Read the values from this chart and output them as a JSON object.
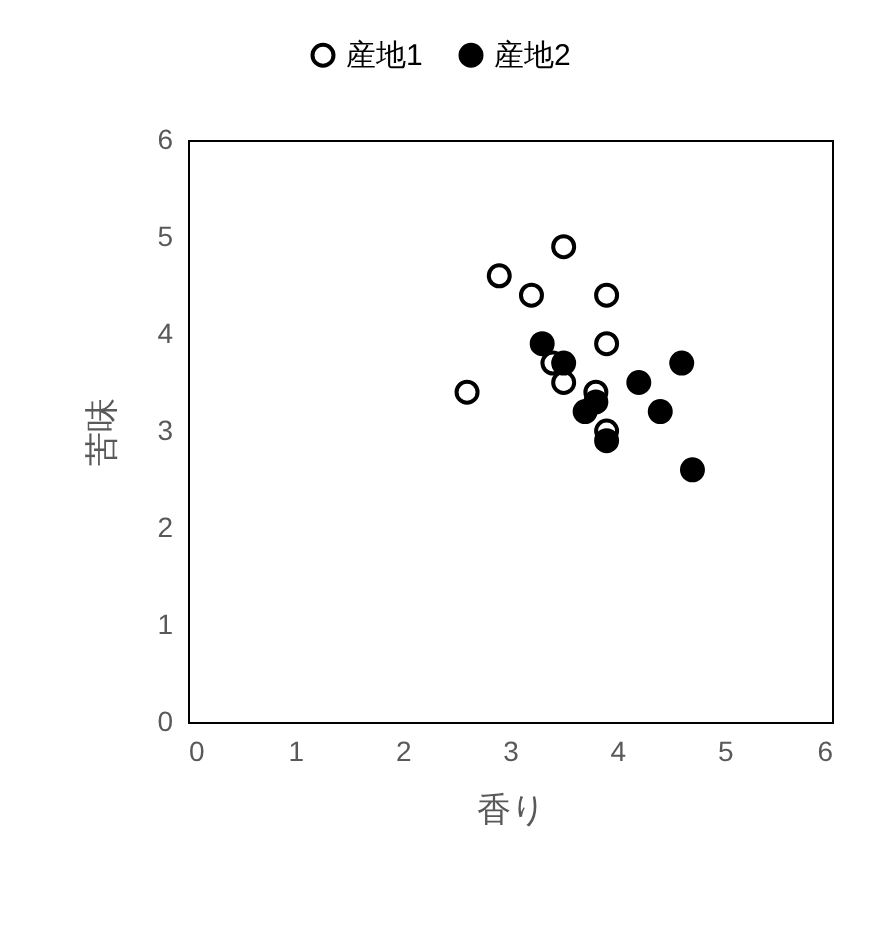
{
  "chart_data": {
    "type": "scatter",
    "xlabel": "香り",
    "ylabel": "苦味",
    "xlim": [
      0,
      6
    ],
    "ylim": [
      0,
      6
    ],
    "xticks": [
      0,
      1,
      2,
      3,
      4,
      5,
      6
    ],
    "yticks": [
      0,
      1,
      2,
      3,
      4,
      5,
      6
    ],
    "grid": false,
    "legend": "top",
    "marker": "circle",
    "series": [
      {
        "name": "産地1",
        "color": "#000000",
        "x": [
          2.6,
          2.9,
          3.2,
          3.5,
          3.9,
          3.9,
          3.4,
          3.5,
          3.8,
          3.9
        ],
        "values": [
          3.4,
          4.6,
          4.4,
          4.9,
          4.4,
          3.9,
          3.7,
          3.5,
          3.4,
          3.0
        ]
      },
      {
        "name": "産地2",
        "color": "#000000",
        "x": [
          3.3,
          3.5,
          3.8,
          3.7,
          3.9,
          4.2,
          4.4,
          4.6,
          4.7
        ],
        "values": [
          3.9,
          3.7,
          3.3,
          3.2,
          2.9,
          3.5,
          3.2,
          3.7,
          2.6
        ]
      }
    ]
  }
}
